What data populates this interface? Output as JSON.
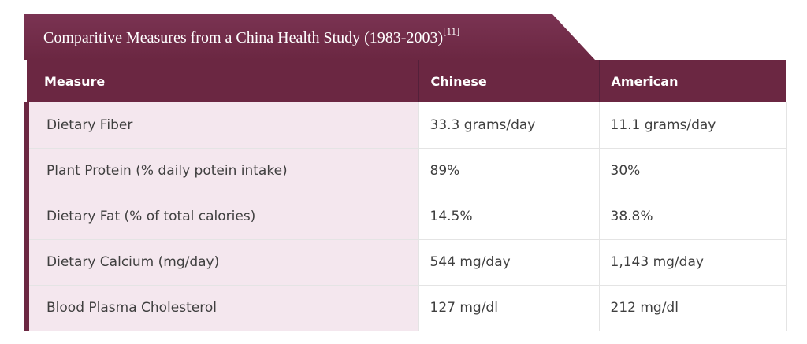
{
  "caption": {
    "title": "Comparitive Measures from a China Health Study (1983-2003)",
    "reference": "[11]"
  },
  "colors": {
    "header_bg": "#6b2742",
    "measure_cell_bg": "#f4e7ee",
    "text": "#3f3f3f"
  },
  "table": {
    "headers": [
      "Measure",
      "Chinese",
      "American"
    ],
    "rows": [
      [
        "Dietary Fiber",
        "33.3 grams/day",
        "11.1 grams/day"
      ],
      [
        "Plant Protein (% daily potein intake)",
        "89%",
        "30%"
      ],
      [
        "Dietary Fat (% of total calories)",
        "14.5%",
        "38.8%"
      ],
      [
        "Dietary Calcium (mg/day)",
        "544 mg/day",
        "1,143 mg/day"
      ],
      [
        "Blood Plasma Cholesterol",
        "127 mg/dl",
        "212 mg/dl"
      ]
    ]
  }
}
